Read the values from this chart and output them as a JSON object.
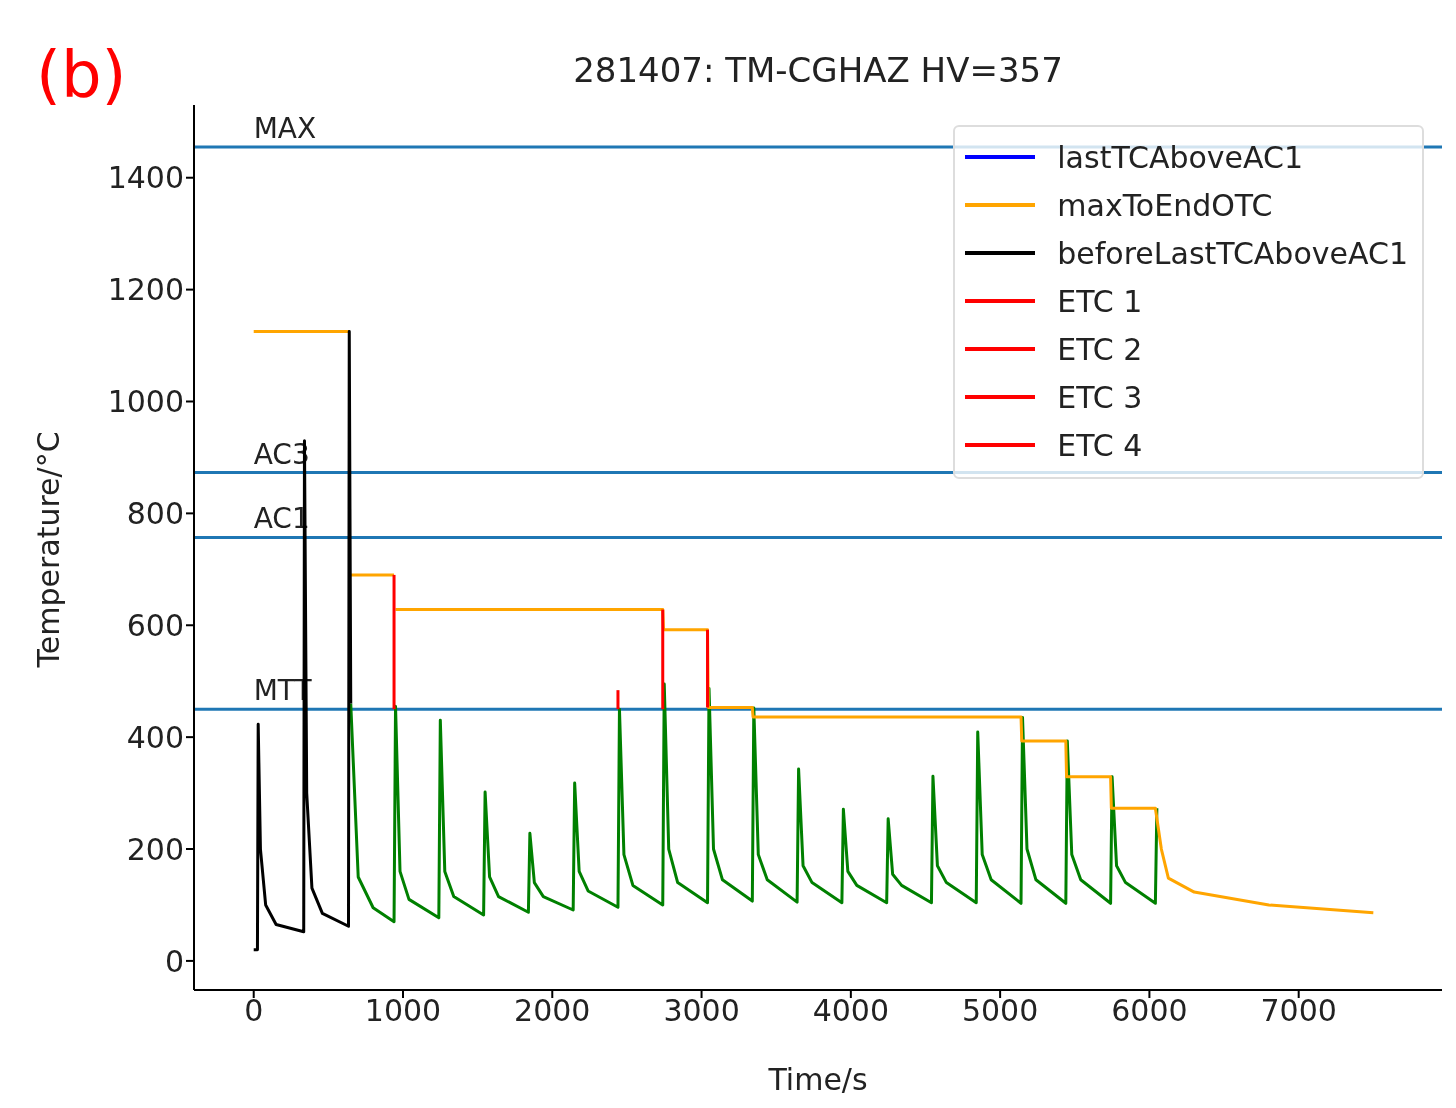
{
  "chart_data": {
    "type": "line",
    "title": "281407: TM-CGHAZ HV=357",
    "xlabel": "Time/s",
    "ylabel": "Temperature/°C",
    "annotations": [
      "(b)"
    ],
    "xlim": [
      -400,
      7960
    ],
    "xticks": [
      0,
      1000,
      2000,
      3000,
      4000,
      5000,
      6000,
      7000
    ],
    "ylim": [
      -52,
      1530
    ],
    "yticks": [
      0,
      200,
      400,
      600,
      800,
      1000,
      1200,
      1400
    ],
    "grid": false,
    "legend": "top right",
    "marker": "none",
    "line_style": "solid",
    "ref_lines": [
      {
        "axis": "y",
        "value": 1455,
        "label": "MAX",
        "color": "#1f77b4"
      },
      {
        "axis": "y",
        "value": 873,
        "label": "AC3",
        "color": "#1f77b4"
      },
      {
        "axis": "y",
        "value": 757,
        "label": "AC1",
        "color": "#1f77b4"
      },
      {
        "axis": "y",
        "value": 450,
        "label": "MTT",
        "color": "#1f77b4"
      }
    ],
    "series": [
      {
        "color": "#008000",
        "x": [
          650,
          700,
          800,
          940,
          950,
          980,
          1040,
          1240,
          1250,
          1280,
          1340,
          1540,
          1550,
          1580,
          1640,
          1840,
          1850,
          1880,
          1940,
          2140,
          2150,
          2180,
          2240,
          2440,
          2450,
          2480,
          2540,
          2740,
          2750,
          2780,
          2840,
          3040,
          3050,
          3080,
          3140,
          3340,
          3350,
          3380,
          3440,
          3640,
          3650,
          3680,
          3740,
          3940,
          3950,
          3980,
          4040,
          4240,
          4250,
          4280,
          4340,
          4540,
          4550,
          4580,
          4640,
          4840,
          4850,
          4880,
          4940,
          5140,
          5150,
          5180,
          5240,
          5440,
          5450,
          5480,
          5540,
          5740,
          5750,
          5780,
          5840,
          6040,
          6050
        ],
        "values": [
          460,
          150,
          95,
          70,
          455,
          160,
          110,
          77,
          430,
          160,
          115,
          82,
          302,
          150,
          115,
          87,
          228,
          140,
          115,
          91,
          318,
          160,
          125,
          96,
          450,
          190,
          135,
          100,
          495,
          200,
          140,
          104,
          487,
          200,
          145,
          107,
          452,
          190,
          145,
          105,
          343,
          170,
          140,
          104,
          271,
          160,
          135,
          104,
          254,
          155,
          135,
          104,
          330,
          170,
          140,
          104,
          409,
          190,
          145,
          103,
          435,
          200,
          145,
          103,
          393,
          190,
          145,
          103,
          329,
          170,
          140,
          103,
          273
        ]
      },
      {
        "name": "lastTCAboveAC1",
        "color": "#0000ff"
      },
      {
        "name": "maxToEndOTC",
        "color": "#ffa500",
        "x": [
          0,
          640,
          645,
          650,
          940,
          945,
          950,
          2740,
          2745,
          3040,
          3045,
          3340,
          3345,
          5140,
          5145,
          5440,
          5445,
          5740,
          5745,
          6040,
          6080,
          6127,
          6300,
          6800,
          7500
        ],
        "values": [
          1125,
          1125,
          null,
          690,
          690,
          null,
          628,
          628,
          592,
          592,
          453,
          453,
          436,
          436,
          393,
          393,
          329,
          329,
          273,
          273,
          200,
          148,
          123,
          100,
          86
        ]
      },
      {
        "name": "beforeLastTCAboveAC1",
        "color": "#000000",
        "x": [
          0,
          25,
          30,
          45,
          80,
          150,
          335,
          340,
          355,
          390,
          460,
          635,
          640,
          650
        ],
        "values": [
          20,
          20,
          423,
          200,
          100,
          65,
          52,
          930,
          300,
          130,
          85,
          62,
          1125,
          460
        ]
      },
      {
        "name": "ETC 1",
        "color": "#ff0000",
        "x": [
          940,
          940
        ],
        "values": [
          690,
          450
        ]
      },
      {
        "name": "ETC 2",
        "color": "#ff0000",
        "x": [
          2440,
          2440
        ],
        "values": [
          450,
          484
        ]
      },
      {
        "name": "ETC 3",
        "color": "#ff0000",
        "x": [
          2740,
          2740
        ],
        "values": [
          628,
          450
        ]
      },
      {
        "name": "ETC 4",
        "color": "#ff0000",
        "x": [
          3040,
          3040
        ],
        "values": [
          592,
          453
        ]
      }
    ]
  }
}
